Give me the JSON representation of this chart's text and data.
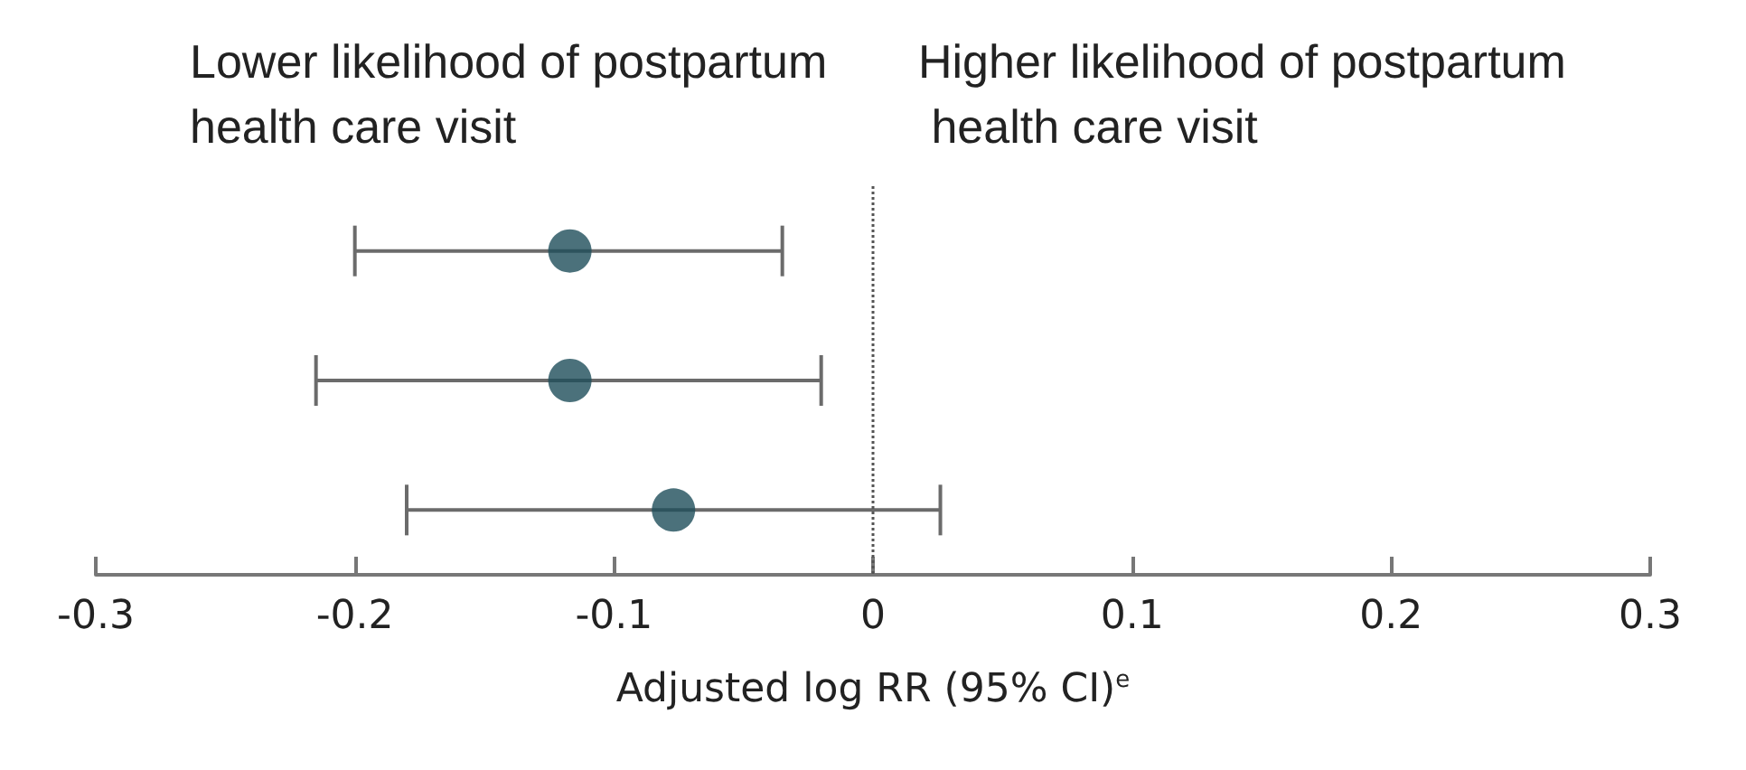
{
  "chart_data": {
    "type": "scatter",
    "orientation": "horizontal",
    "categories": [
      null,
      null,
      null
    ],
    "series": [
      {
        "color": "#1e4d5a",
        "values": [
          -0.117,
          -0.117,
          -0.077
        ],
        "errors": [
          [
            -0.2,
            -0.035
          ],
          [
            -0.215,
            -0.02
          ],
          [
            -0.18,
            0.026
          ]
        ]
      }
    ],
    "xlabel": "Adjusted log RR (95% CI)$^{e}$",
    "annotations": [
      "Lower likelihood of postpartum health care visit",
      "Higher likelihood of postpartum health care visit"
    ],
    "xlim": [
      -0.3,
      0.3
    ],
    "xticks": [
      -0.3,
      -0.2,
      -0.1,
      0,
      0.1,
      0.2,
      0.3
    ],
    "ref_lines": [
      {
        "axis": "x",
        "value": 0,
        "line_style": "dotted",
        "color": "#555555"
      }
    ],
    "marker": "circle",
    "grid": false,
    "tick_labels": "x"
  }
}
